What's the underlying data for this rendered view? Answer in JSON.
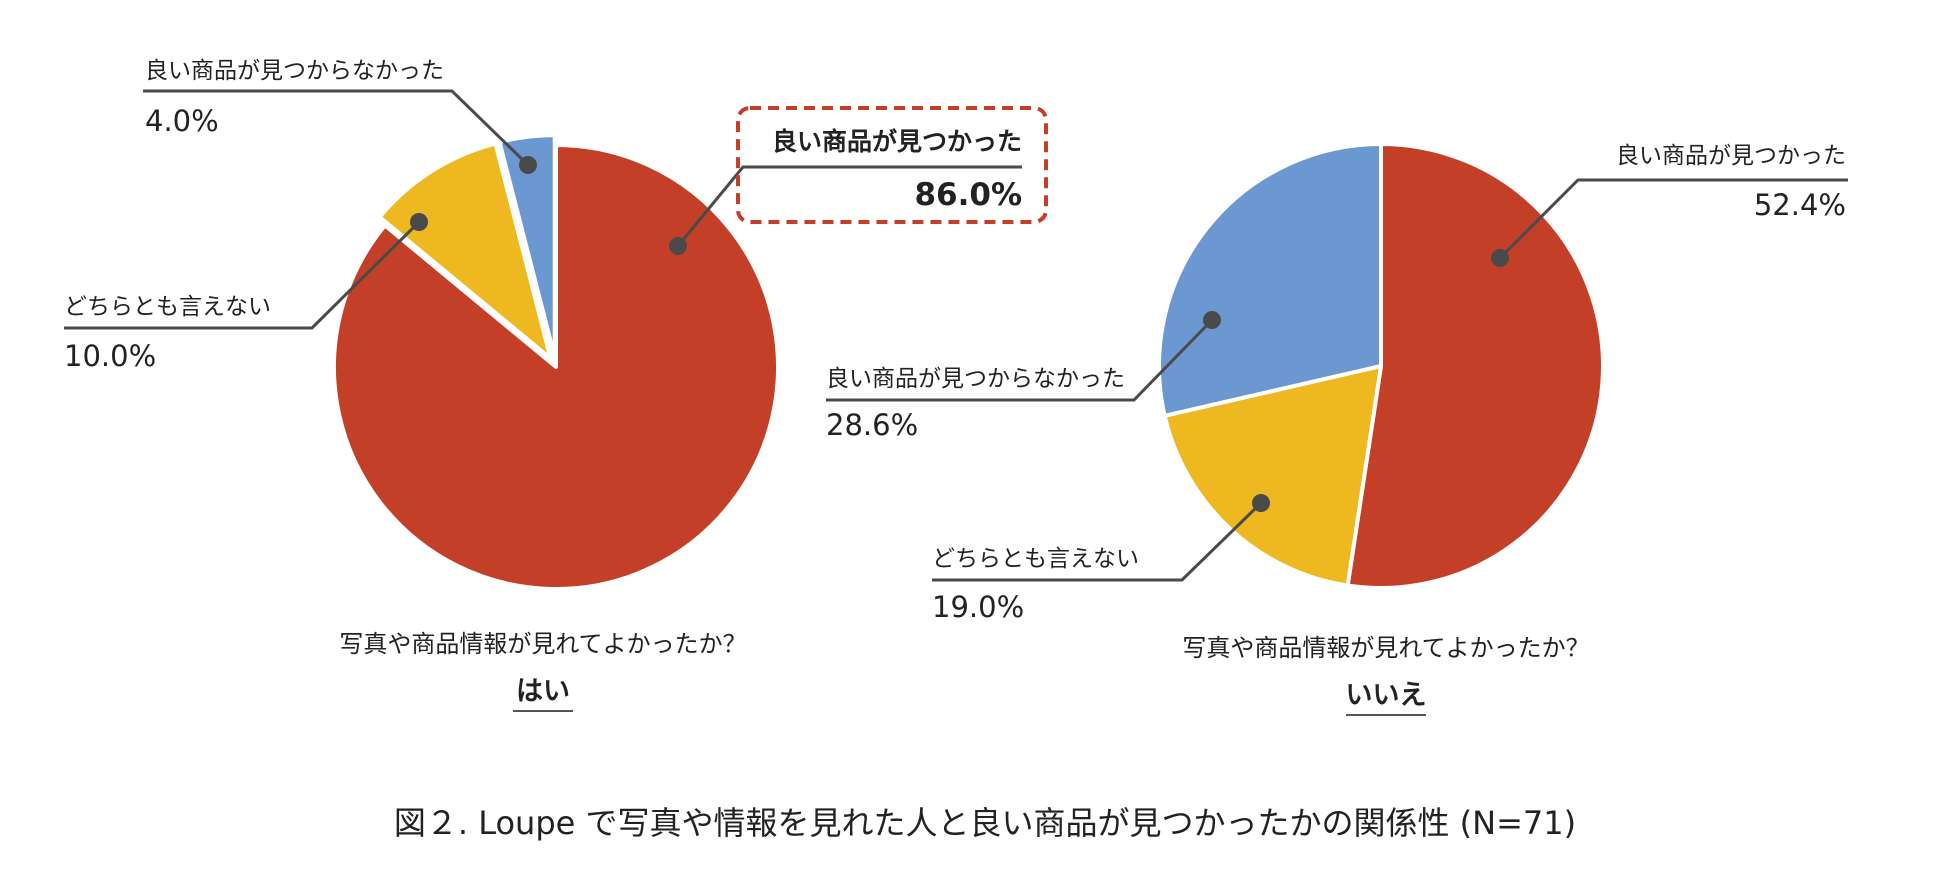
{
  "chart_data": [
    {
      "type": "pie",
      "question": "写真や商品情報が見れてよかったか？",
      "answer": "はい",
      "slices": [
        {
          "label": "良い商品が見つかった",
          "value": 86.0,
          "value_label": "86.0%",
          "color": "#c43f27",
          "highlighted": true
        },
        {
          "label": "どちらとも言えない",
          "value": 10.0,
          "value_label": "10.0%",
          "color": "#eeb820",
          "exploded": true
        },
        {
          "label": "良い商品が見つからなかった",
          "value": 4.0,
          "value_label": "4.0%",
          "color": "#6b98d1",
          "exploded": true
        }
      ]
    },
    {
      "type": "pie",
      "question": "写真や商品情報が見れてよかったか？",
      "answer": "いいえ",
      "slices": [
        {
          "label": "良い商品が見つかった",
          "value": 52.4,
          "value_label": "52.4%",
          "color": "#c43f27"
        },
        {
          "label": "どちらとも言えない",
          "value": 19.0,
          "value_label": "19.0%",
          "color": "#eeb820"
        },
        {
          "label": "良い商品が見つからなかった",
          "value": 28.6,
          "value_label": "28.6%",
          "color": "#6b98d1"
        }
      ]
    }
  ],
  "caption": "図２. Loupe で写真や情報を見れた人と良い商品が見つかったかの関係性 (N=71)",
  "colors": {
    "leader": "#4a4a4a",
    "highlight_border": "#c43f27",
    "separator": "#ffffff"
  }
}
